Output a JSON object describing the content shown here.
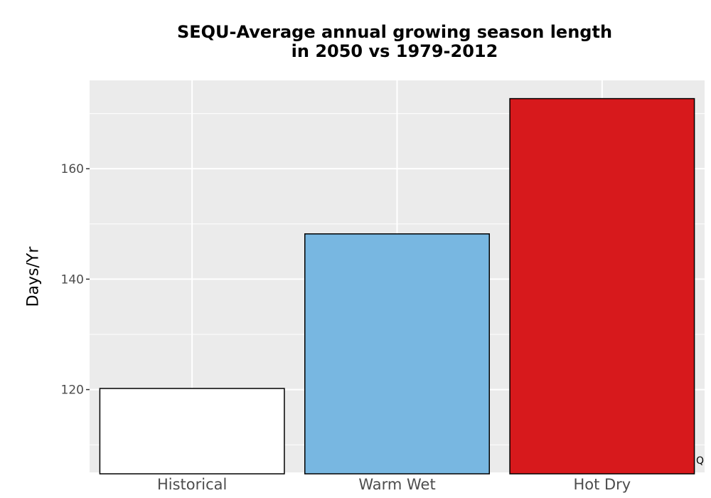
{
  "chart_data": {
    "type": "bar",
    "title_lines": [
      "SEQU-Average annual growing season length",
      "in 2050 vs 1979-2012"
    ],
    "xlabel": "",
    "ylabel": "Days/Yr",
    "categories": [
      "Historical",
      "Warm Wet",
      "Hot Dry"
    ],
    "values": [
      120.2,
      148.2,
      172.7
    ],
    "colors": [
      "#ffffff",
      "#78b7e1",
      "#d7191c"
    ],
    "bar_outline_color": "#000000",
    "ylim": [
      105,
      176
    ],
    "yticks": [
      120,
      140,
      160
    ],
    "grid": true,
    "panel_background": "#ebebeb",
    "grid_color": "#ffffff",
    "legend": "none"
  },
  "watermark_text": "Q"
}
